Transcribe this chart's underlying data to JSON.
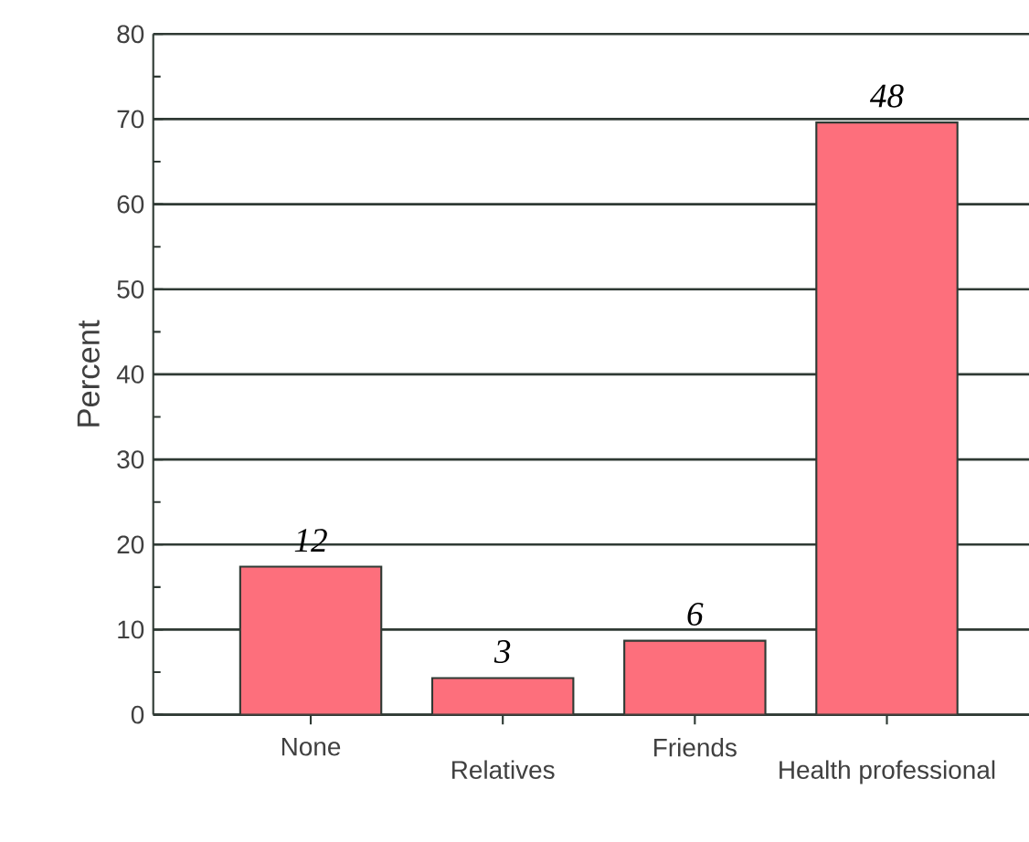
{
  "chart_data": {
    "type": "bar",
    "ylabel": "Percent",
    "categories": [
      "None",
      "Relatives",
      "Friends",
      "Health professional"
    ],
    "values": [
      17.4,
      4.3,
      8.7,
      69.6
    ],
    "annotations": [
      {
        "text": "12",
        "x": "None",
        "y": 17.4
      },
      {
        "text": "3",
        "x": "Relatives",
        "y": 4.3
      },
      {
        "text": "6",
        "x": "Friends",
        "y": 8.7
      },
      {
        "text": "48",
        "x": "Health professional",
        "y": 69.6
      }
    ],
    "color": "#fd6f7c",
    "ylim": [
      0,
      80
    ],
    "yticks": [
      0,
      10,
      20,
      30,
      40,
      50,
      60,
      70,
      80
    ],
    "grid": "y"
  }
}
